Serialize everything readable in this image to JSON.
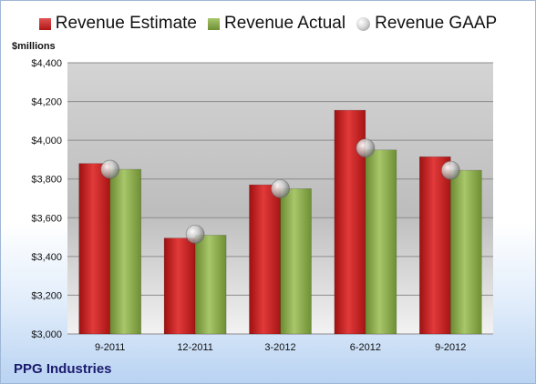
{
  "legend": {
    "estimate": "Revenue Estimate",
    "actual": "Revenue Actual",
    "gaap": "Revenue GAAP"
  },
  "unit_label": "$millions",
  "company": "PPG Industries",
  "colors": {
    "estimate": "#c81f1f",
    "actual": "#8aab4a",
    "gaap": "#c0c0c0"
  },
  "chart_data": {
    "type": "bar",
    "categories": [
      "9-2011",
      "12-2011",
      "3-2012",
      "6-2012",
      "9-2012"
    ],
    "series": [
      {
        "name": "Revenue Estimate",
        "values": [
          3880,
          3495,
          3770,
          4155,
          3915
        ]
      },
      {
        "name": "Revenue Actual",
        "values": [
          3850,
          3510,
          3750,
          3950,
          3845
        ]
      },
      {
        "name": "Revenue GAAP",
        "values": [
          3850,
          3515,
          3750,
          3960,
          3845
        ]
      }
    ],
    "ylabel": "$millions",
    "ylim": [
      3000,
      4400
    ],
    "yticks": [
      "$3,000",
      "$3,200",
      "$3,400",
      "$3,600",
      "$3,800",
      "$4,000",
      "$4,200",
      "$4,400"
    ],
    "ytick_values": [
      3000,
      3200,
      3400,
      3600,
      3800,
      4000,
      4200,
      4400
    ],
    "grid": true,
    "legend_position": "top"
  }
}
